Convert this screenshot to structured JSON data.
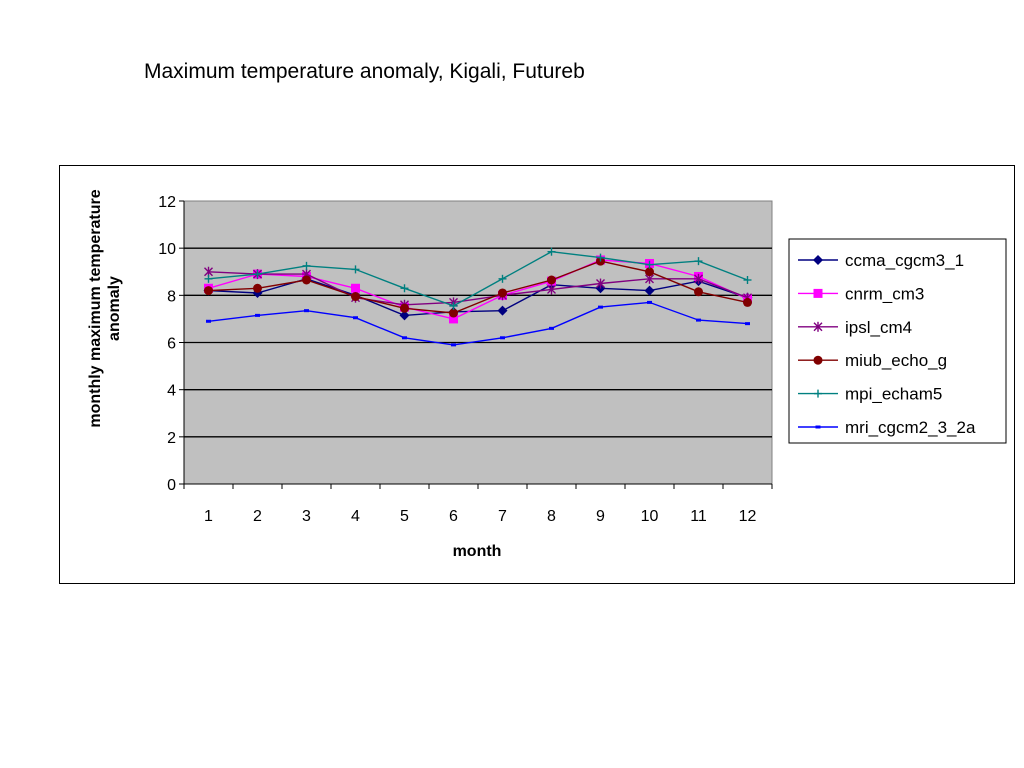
{
  "page": {
    "title": "Maximum temperature anomaly, Kigali, Futureb"
  },
  "chart_data": {
    "type": "line",
    "title": "Maximum temperature anomaly, Kigali, Futureb",
    "xlabel": "month",
    "ylabel": "monthly maximum temperature anomaly",
    "categories": [
      "1",
      "2",
      "3",
      "4",
      "5",
      "6",
      "7",
      "8",
      "9",
      "10",
      "11",
      "12"
    ],
    "ylim": [
      0,
      12
    ],
    "yticks": [
      "0",
      "2",
      "4",
      "6",
      "8",
      "10",
      "12"
    ],
    "grid": true,
    "legend_position": "right",
    "plot_background": "#c0c0c0",
    "series": [
      {
        "name": "ccma_cgcm3_1",
        "color": "#000080",
        "marker": "diamond",
        "values": [
          8.2,
          8.1,
          8.7,
          8.0,
          7.15,
          7.3,
          7.35,
          8.45,
          8.3,
          8.2,
          8.6,
          7.9
        ]
      },
      {
        "name": "cnrm_cm3",
        "color": "#ff00ff",
        "marker": "square",
        "values": [
          8.3,
          8.9,
          8.8,
          8.3,
          7.5,
          7.0,
          8.0,
          8.6,
          9.5,
          9.35,
          8.8,
          7.85
        ]
      },
      {
        "name": "ipsl_cm4",
        "color": "#800080",
        "marker": "star",
        "values": [
          9.0,
          8.9,
          8.9,
          7.9,
          7.6,
          7.7,
          8.0,
          8.25,
          8.5,
          8.7,
          8.7,
          7.9
        ]
      },
      {
        "name": "miub_echo_g",
        "color": "#800000",
        "marker": "circle",
        "values": [
          8.2,
          8.3,
          8.65,
          7.95,
          7.45,
          7.25,
          8.1,
          8.65,
          9.45,
          9.0,
          8.15,
          7.7
        ]
      },
      {
        "name": "mpi_echam5",
        "color": "#008080",
        "marker": "plus",
        "values": [
          8.7,
          8.9,
          9.25,
          9.1,
          8.3,
          7.55,
          8.7,
          9.85,
          9.6,
          9.3,
          9.45,
          8.65
        ]
      },
      {
        "name": "mri_cgcm2_3_2a",
        "color": "#0000ff",
        "marker": "dash",
        "values": [
          6.9,
          7.15,
          7.35,
          7.05,
          6.2,
          5.9,
          6.2,
          6.6,
          7.5,
          7.7,
          6.95,
          6.8
        ]
      }
    ]
  }
}
